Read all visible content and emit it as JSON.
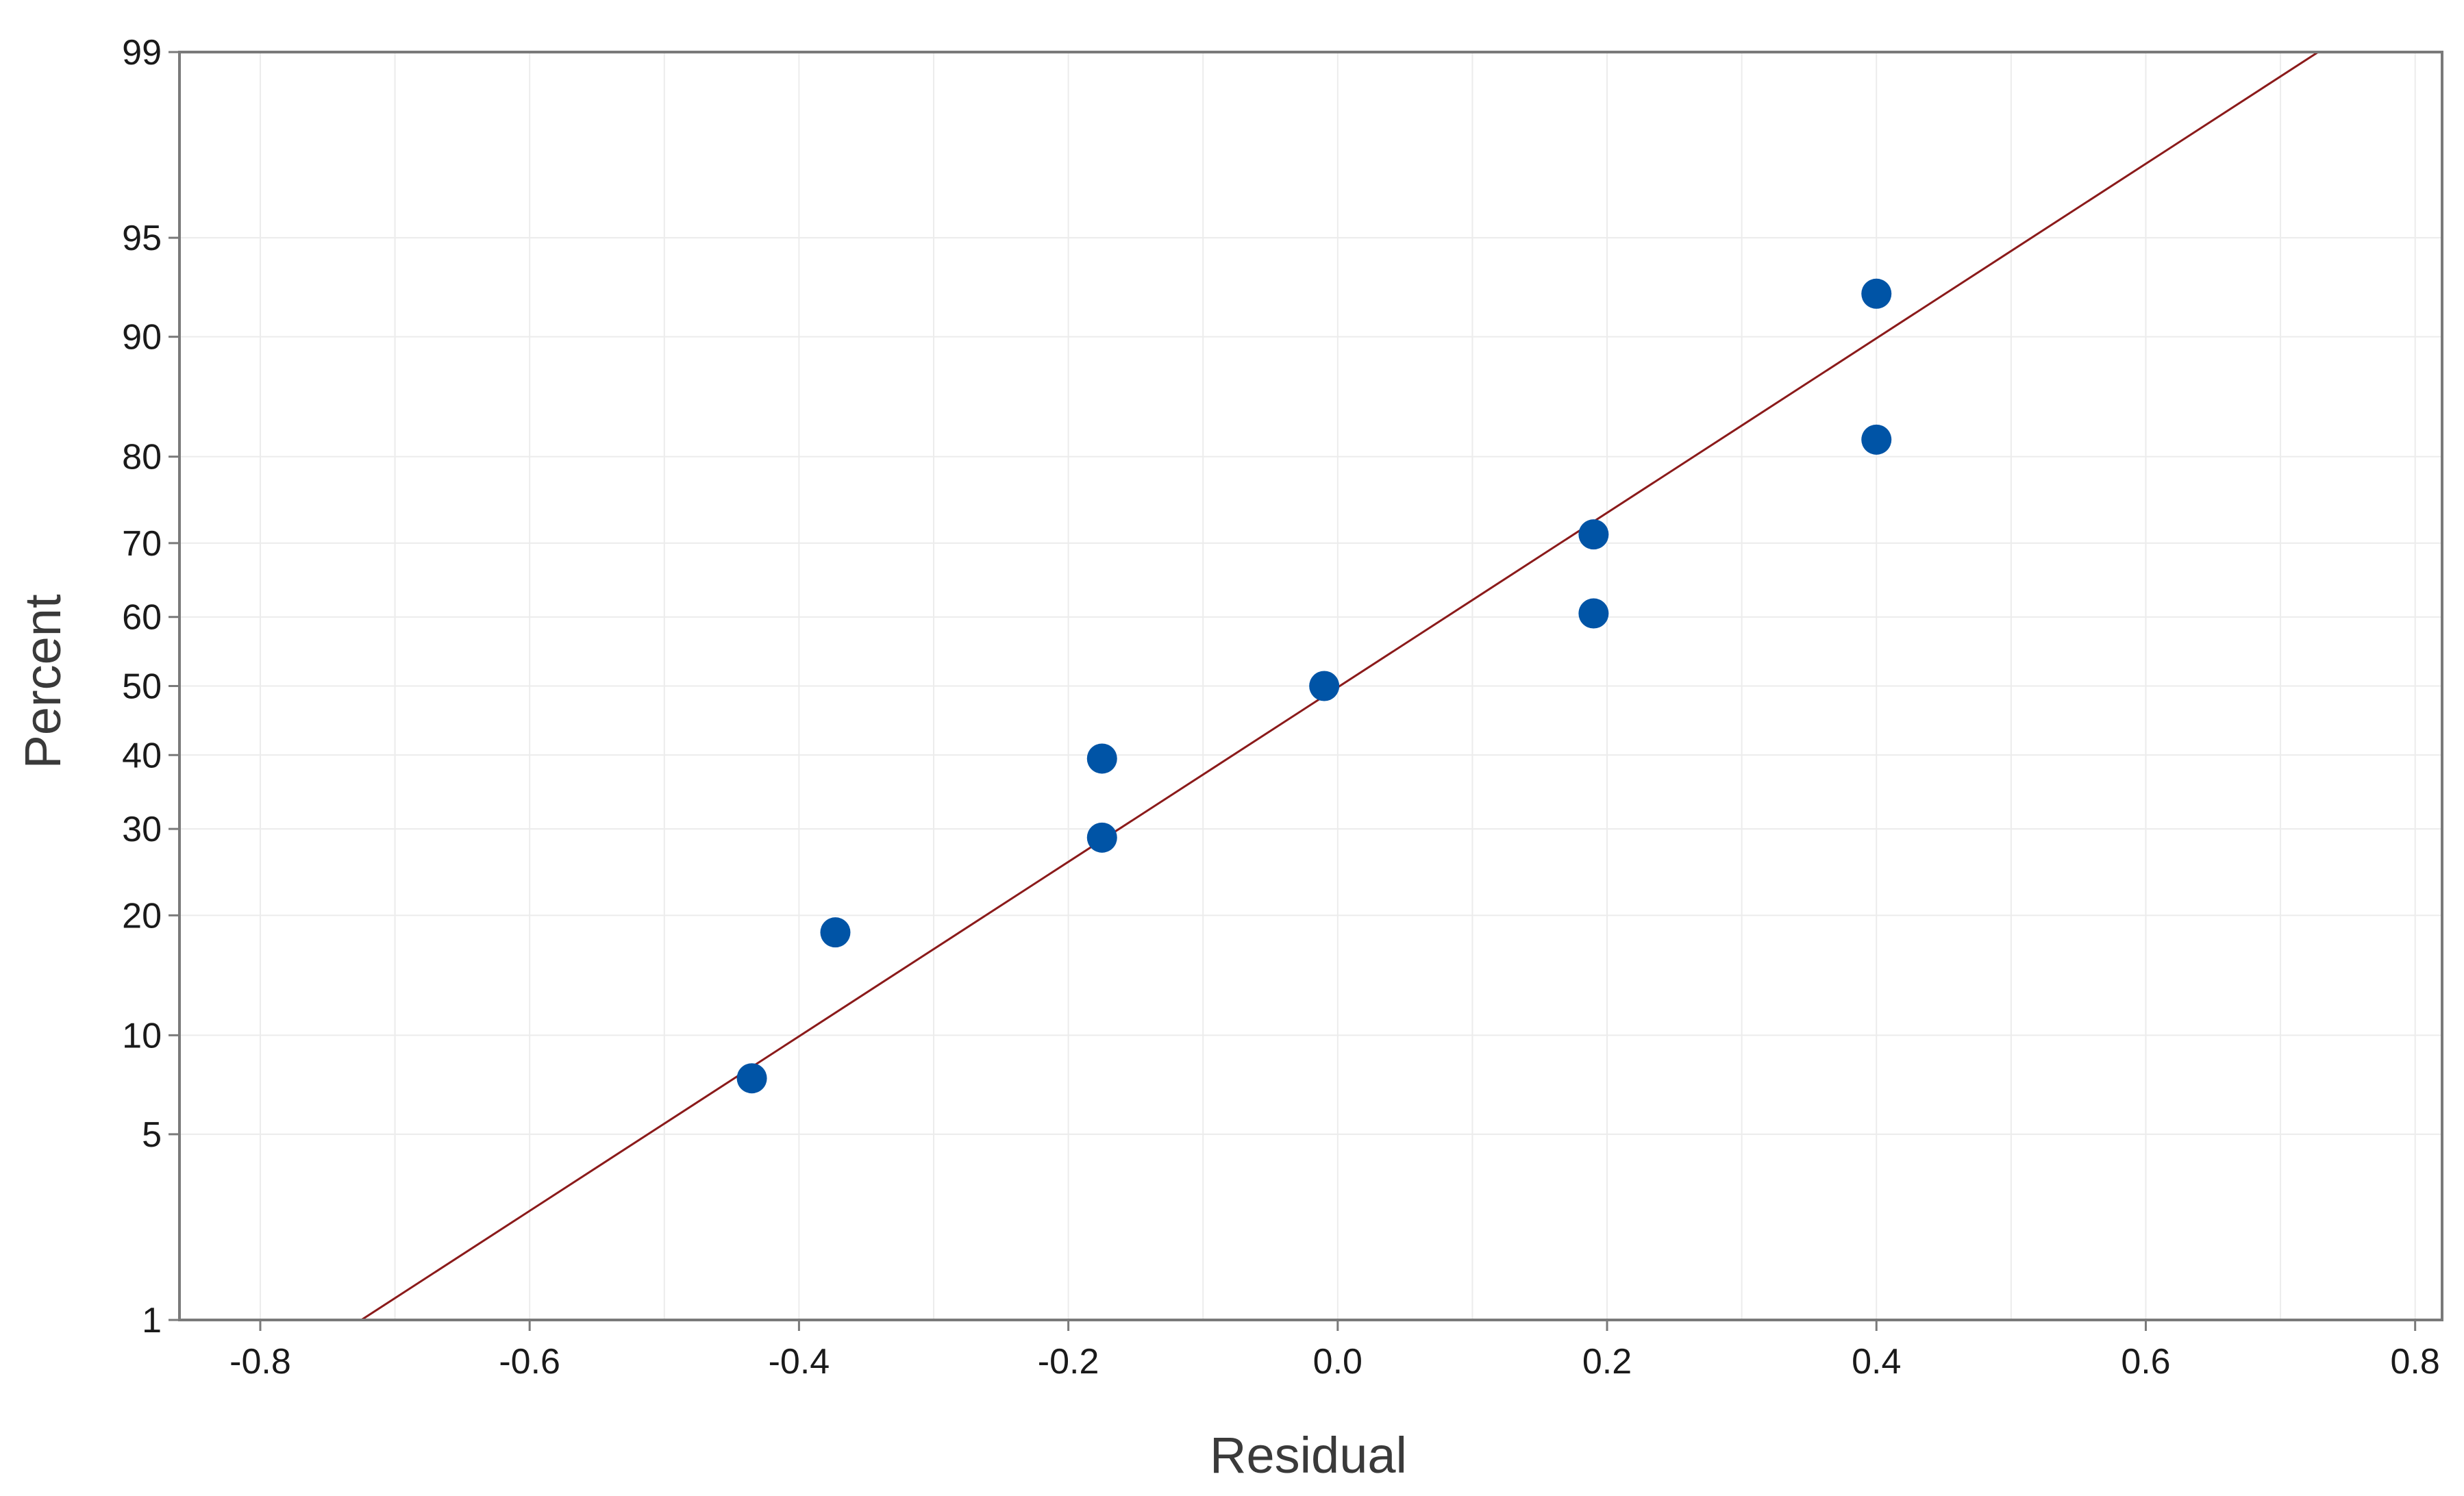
{
  "chart_data": {
    "type": "scatter",
    "scale": "normal-probability",
    "title": "",
    "xlabel": "Residual",
    "ylabel": "Percent",
    "xlim": [
      -0.86,
      0.82
    ],
    "ylim": [
      1,
      99
    ],
    "x_ticks": [
      -0.8,
      -0.6,
      -0.4,
      -0.2,
      0.0,
      0.2,
      0.4,
      0.6,
      0.8
    ],
    "x_tick_labels": [
      "-0.8",
      "-0.6",
      "-0.4",
      "-0.2",
      "0.0",
      "0.2",
      "0.4",
      "0.6",
      "0.8"
    ],
    "y_ticks": [
      1,
      5,
      10,
      20,
      30,
      40,
      50,
      60,
      70,
      80,
      90,
      95,
      99
    ],
    "y_tick_labels": [
      "1",
      "5",
      "10",
      "20",
      "30",
      "40",
      "50",
      "60",
      "70",
      "80",
      "90",
      "95",
      "99"
    ],
    "grid": true,
    "points": [
      {
        "x": -0.435,
        "y": 7.5
      },
      {
        "x": -0.373,
        "y": 18.3
      },
      {
        "x": -0.175,
        "y": 28.9
      },
      {
        "x": -0.175,
        "y": 39.5
      },
      {
        "x": -0.01,
        "y": 50.0
      },
      {
        "x": 0.19,
        "y": 60.5
      },
      {
        "x": 0.19,
        "y": 71.1
      },
      {
        "x": 0.4,
        "y": 81.7
      },
      {
        "x": 0.4,
        "y": 92.5
      }
    ],
    "fit_line": {
      "x": [
        -0.725,
        0.728
      ],
      "y": [
        1,
        99
      ]
    },
    "colors": {
      "points": "#0054a6",
      "fit_line": "#8b1a1a",
      "grid": "#ececec",
      "frame": "#7a7a7a"
    }
  }
}
